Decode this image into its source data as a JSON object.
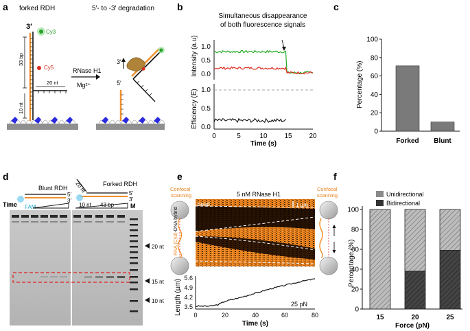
{
  "panels": {
    "a": {
      "letter": "a",
      "left_label": "forked RDH",
      "right_label": "5′- to -3′ degradation",
      "end_3prime": "3′",
      "cy3": "Cy3",
      "cy5": "Cy5",
      "bp33": "33 bp",
      "nt20": "20 nt",
      "nt10": "10 nt",
      "enzyme": "RNase H1",
      "mg": "Mg²⁺",
      "prod_3": "3′",
      "prod_5": "5′"
    },
    "b": {
      "letter": "b",
      "title_line1": "Simultaneous disappearance",
      "title_line2": "of both fluorescence signals",
      "ylabel_top": "Intensity (a.u)",
      "ylabel_bottom": "Efficiency (E)",
      "xlabel": "Time (s)",
      "yticks_top": [
        "1.0",
        "0.5",
        "0.0"
      ],
      "yticks_bottom": [
        "1.0",
        "0.5",
        "0.0"
      ],
      "xticks": [
        "0",
        "5",
        "10",
        "15",
        "20"
      ]
    },
    "c": {
      "letter": "c",
      "ylabel": "Percentage (%)"
    },
    "d": {
      "letter": "d",
      "blunt_label": "Blunt RDH",
      "forked_label": "Forked RDH",
      "time": "Time",
      "fam": "FAM",
      "nt20_top": "20 nt",
      "nt10": "10 nt",
      "bp43": "43 bp",
      "p5a": "5′",
      "p3a": "3′",
      "p5b": "5′",
      "p3b": "3′",
      "marker": "M",
      "markers": [
        "20 nt",
        "15 nt",
        "10 nt"
      ]
    },
    "e": {
      "letter": "e",
      "confocal_left": "Confocal scanning",
      "confocal_right": "Confocal scanning",
      "hybrid_label": "RNA (Cy3)-DNA hybrid",
      "title": "5 nM RNase H1",
      "bead": "bead",
      "scale": "1 µm",
      "force": "25 pN",
      "ylabel": "Length (µm)",
      "xlabel": "Time (s)",
      "yticks": [
        "5.6",
        "4.9",
        "4.2",
        "3.5"
      ],
      "xticks": [
        "0",
        "20",
        "40",
        "60",
        "80"
      ]
    },
    "f": {
      "letter": "f",
      "ylabel": "Percentage (%)",
      "xlabel": "Force (pN)",
      "legend_uni": "Unidirectional",
      "legend_bi": "Bidirectional"
    }
  },
  "chart_data": [
    {
      "id": "panel-c",
      "type": "bar",
      "categories": [
        "Forked",
        "Blunt"
      ],
      "values": [
        71,
        10
      ],
      "ylabel": "Percentage (%)",
      "ylim": [
        0,
        100
      ],
      "yticks": [
        0,
        20,
        40,
        60,
        80,
        100
      ],
      "color": "#7a7a7a"
    },
    {
      "id": "panel-f",
      "type": "bar",
      "stacked": true,
      "categories": [
        "15",
        "20",
        "25"
      ],
      "series": [
        {
          "name": "Bidirectional",
          "values": [
            0,
            38,
            59
          ]
        },
        {
          "name": "Unidirectional",
          "values": [
            100,
            62,
            41
          ]
        }
      ],
      "xlabel": "Force (pN)",
      "ylabel": "Percentage (%)",
      "ylim": [
        0,
        100
      ],
      "yticks": [
        0,
        20,
        40,
        60,
        80,
        100
      ]
    },
    {
      "id": "panel-b-intensity",
      "type": "line",
      "xlim": [
        0,
        20
      ],
      "ylim": [
        0,
        1.1
      ],
      "event_time": 14.6,
      "series": [
        {
          "name": "Cy3 (donor)",
          "color": "#22aa22",
          "before": 0.82,
          "after": 0.05
        },
        {
          "name": "Cy5 (acceptor)",
          "color": "#dd2a1e",
          "before": 0.22,
          "after": 0.05
        }
      ]
    },
    {
      "id": "panel-b-efficiency",
      "type": "line",
      "xlim": [
        0,
        20
      ],
      "ylim": [
        0,
        1.0
      ],
      "reference_line": 1.0,
      "series": [
        {
          "name": "FRET efficiency",
          "color": "#000000",
          "level": 0.22,
          "end": 14.6
        }
      ]
    },
    {
      "id": "panel-e-length",
      "type": "line",
      "xlim": [
        0,
        80
      ],
      "ylim": [
        3.5,
        5.6
      ],
      "x": [
        0,
        10,
        15,
        20,
        30,
        40,
        50,
        60,
        70,
        80
      ],
      "y": [
        3.7,
        3.7,
        3.8,
        4.05,
        4.3,
        4.6,
        4.9,
        5.15,
        5.4,
        5.6
      ],
      "force_pN": 25
    }
  ]
}
